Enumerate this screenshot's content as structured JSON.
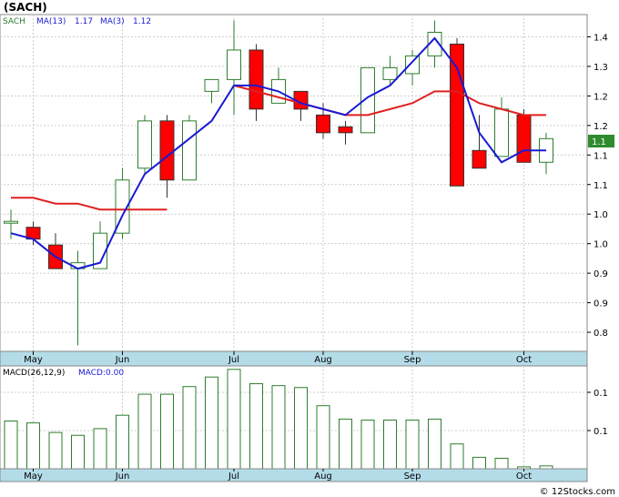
{
  "header": {
    "title": "(SACH)",
    "symbol_label": "SACH",
    "ma13_label": "MA(13)",
    "ma13_value": "1.17",
    "ma3_label": "MA(3)",
    "ma3_value": "1.12"
  },
  "macd_header": {
    "label": "MACD(26,12,9)",
    "value_label": "MACD:0.00"
  },
  "price_badge": "1.1",
  "credit": "© 12Stocks.com",
  "colors": {
    "up_candle": "#2e7d2e",
    "down_candle": "#ff0000",
    "ma13": "#e02020",
    "ma3": "#1a1ad4",
    "axis_band": "#b4dce8",
    "macd_bar": "#2e7d2e",
    "badge_bg": "#2e8b2e",
    "badge_text": "#ffffff"
  },
  "chart_data": [
    {
      "type": "candlestick",
      "title": "(SACH)",
      "price_ticks": [
        "1.4",
        "1.3",
        "1.2",
        "1.2",
        "1.1",
        "1.1",
        "1.0",
        "1.0",
        "0.9",
        "0.9",
        "0.8"
      ],
      "price_tick_values": [
        1.4,
        1.35,
        1.3,
        1.25,
        1.2,
        1.15,
        1.1,
        1.05,
        1.0,
        0.95,
        0.9
      ],
      "ylim": [
        0.86,
        1.43
      ],
      "months": [
        {
          "label": "May",
          "index": 1
        },
        {
          "label": "Jun",
          "index": 5
        },
        {
          "label": "Jul",
          "index": 10
        },
        {
          "label": "Aug",
          "index": 14
        },
        {
          "label": "Sep",
          "index": 18
        },
        {
          "label": "Oct",
          "index": 23
        }
      ],
      "candles": [
        {
          "open": 1.08,
          "high": 1.1,
          "low": 1.05,
          "close": 1.08
        },
        {
          "open": 1.07,
          "high": 1.08,
          "low": 1.04,
          "close": 1.05
        },
        {
          "open": 1.04,
          "high": 1.06,
          "low": 1.0,
          "close": 1.0
        },
        {
          "open": 1.0,
          "high": 1.03,
          "low": 0.87,
          "close": 1.01
        },
        {
          "open": 1.0,
          "high": 1.08,
          "low": 1.0,
          "close": 1.06
        },
        {
          "open": 1.06,
          "high": 1.17,
          "low": 1.05,
          "close": 1.15
        },
        {
          "open": 1.17,
          "high": 1.26,
          "low": 1.16,
          "close": 1.25
        },
        {
          "open": 1.25,
          "high": 1.26,
          "low": 1.12,
          "close": 1.15
        },
        {
          "open": 1.15,
          "high": 1.26,
          "low": 1.15,
          "close": 1.25
        },
        {
          "open": 1.3,
          "high": 1.32,
          "low": 1.28,
          "close": 1.32
        },
        {
          "open": 1.32,
          "high": 1.42,
          "low": 1.26,
          "close": 1.37
        },
        {
          "open": 1.37,
          "high": 1.38,
          "low": 1.25,
          "close": 1.27
        },
        {
          "open": 1.28,
          "high": 1.34,
          "low": 1.28,
          "close": 1.32
        },
        {
          "open": 1.3,
          "high": 1.3,
          "low": 1.25,
          "close": 1.27
        },
        {
          "open": 1.26,
          "high": 1.28,
          "low": 1.22,
          "close": 1.23
        },
        {
          "open": 1.24,
          "high": 1.25,
          "low": 1.21,
          "close": 1.23
        },
        {
          "open": 1.23,
          "high": 1.34,
          "low": 1.23,
          "close": 1.34
        },
        {
          "open": 1.32,
          "high": 1.36,
          "low": 1.31,
          "close": 1.34
        },
        {
          "open": 1.33,
          "high": 1.37,
          "low": 1.31,
          "close": 1.36
        },
        {
          "open": 1.36,
          "high": 1.42,
          "low": 1.34,
          "close": 1.4
        },
        {
          "open": 1.38,
          "high": 1.39,
          "low": 1.14,
          "close": 1.14
        },
        {
          "open": 1.2,
          "high": 1.26,
          "low": 1.17,
          "close": 1.17
        },
        {
          "open": 1.19,
          "high": 1.29,
          "low": 1.19,
          "close": 1.27
        },
        {
          "open": 1.26,
          "high": 1.27,
          "low": 1.18,
          "close": 1.18
        },
        {
          "open": 1.18,
          "high": 1.23,
          "low": 1.16,
          "close": 1.22
        }
      ],
      "series": [
        {
          "name": "MA(13)",
          "values": [
            1.12,
            1.12,
            1.11,
            1.11,
            1.1,
            1.1,
            1.1,
            1.1,
            null,
            null,
            1.31,
            1.3,
            1.29,
            1.28,
            1.27,
            1.26,
            1.26,
            1.27,
            1.28,
            1.3,
            1.3,
            1.28,
            1.27,
            1.26,
            1.26
          ]
        },
        {
          "name": "MA(3)",
          "values": [
            1.06,
            1.05,
            1.02,
            1.0,
            1.01,
            1.09,
            1.16,
            1.19,
            1.22,
            1.25,
            1.31,
            1.31,
            1.3,
            1.28,
            1.27,
            1.26,
            1.29,
            1.31,
            1.35,
            1.39,
            1.34,
            1.23,
            1.18,
            1.2,
            1.2
          ]
        }
      ]
    },
    {
      "type": "bar",
      "title": "MACD(26,12,9)",
      "tick_labels": [
        "0.1",
        "0.1"
      ],
      "ylim": [
        0.0,
        0.1
      ],
      "values": [
        0.05,
        0.048,
        0.038,
        0.035,
        0.042,
        0.056,
        0.078,
        0.078,
        0.086,
        0.096,
        0.104,
        0.089,
        0.087,
        0.085,
        0.066,
        0.052,
        0.051,
        0.051,
        0.051,
        0.052,
        0.026,
        0.012,
        0.011,
        0.002,
        0.003
      ]
    }
  ]
}
